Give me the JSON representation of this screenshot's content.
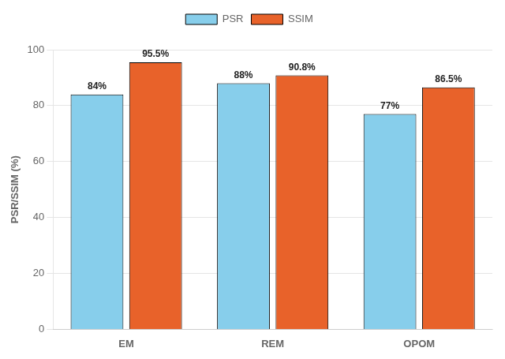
{
  "chart_data": {
    "type": "bar",
    "categories": [
      "EM",
      "REM",
      "OPOM"
    ],
    "series": [
      {
        "name": "PSR",
        "color": "#87CEEB",
        "values": [
          84,
          88,
          77
        ],
        "value_labels": [
          "84%",
          "88%",
          "77%"
        ]
      },
      {
        "name": "SSIM",
        "color": "#E8622A",
        "values": [
          95.5,
          90.8,
          86.5
        ],
        "value_labels": [
          "95.5%",
          "90.8%",
          "86.5%"
        ]
      }
    ],
    "ylabel": "PSR/SSIM (%)",
    "ylim": [
      0,
      100
    ],
    "yticks": [
      0,
      20,
      40,
      60,
      80,
      100
    ],
    "grid": true,
    "legend": "top",
    "data_labels": true
  }
}
